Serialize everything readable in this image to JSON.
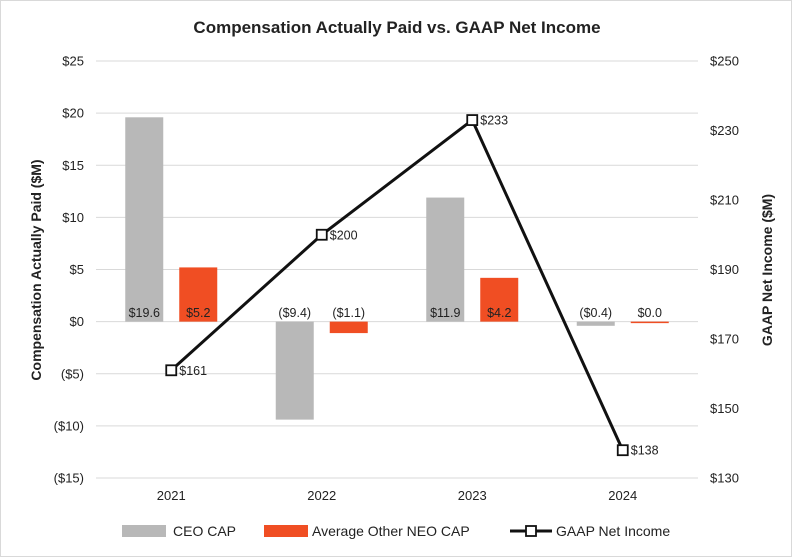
{
  "chart_data": {
    "type": "bar",
    "title": "Compensation Actually Paid vs. GAAP Net Income",
    "categories": [
      "2021",
      "2022",
      "2023",
      "2024"
    ],
    "ylabel": "Compensation Actually Paid ($M)",
    "y2label": "GAAP Net Income ($M)",
    "ylim": [
      -15,
      25
    ],
    "y2lim": [
      130,
      250
    ],
    "yticks": [
      25,
      20,
      15,
      10,
      5,
      0,
      -5,
      -10,
      -15
    ],
    "ytick_labels": [
      "$25",
      "$20",
      "$15",
      "$10",
      "$5",
      "$0",
      "($5)",
      "($10)",
      "($15)"
    ],
    "y2ticks": [
      250,
      230,
      210,
      190,
      170,
      150,
      130
    ],
    "y2tick_labels": [
      "$250",
      "$230",
      "$210",
      "$190",
      "$170",
      "$150",
      "$130"
    ],
    "grid": "horizontal",
    "legend_position": "bottom",
    "series": [
      {
        "name": "CEO CAP",
        "type": "bar",
        "axis": "left",
        "color": "#b8b8b8",
        "values": [
          19.6,
          -9.4,
          11.9,
          -0.4
        ],
        "labels": [
          "$19.6",
          "($9.4)",
          "$11.9",
          "($0.4)"
        ]
      },
      {
        "name": "Average Other NEO CAP",
        "type": "bar",
        "axis": "left",
        "color": "#f04e23",
        "values": [
          5.2,
          -1.1,
          4.2,
          0.0
        ],
        "labels": [
          "$5.2",
          "($1.1)",
          "$4.2",
          "$0.0"
        ]
      },
      {
        "name": "GAAP Net Income",
        "type": "line",
        "axis": "right",
        "color": "#111111",
        "values": [
          161,
          200,
          233,
          138
        ],
        "labels": [
          "$161",
          "$200",
          "$233",
          "$138"
        ]
      }
    ]
  }
}
